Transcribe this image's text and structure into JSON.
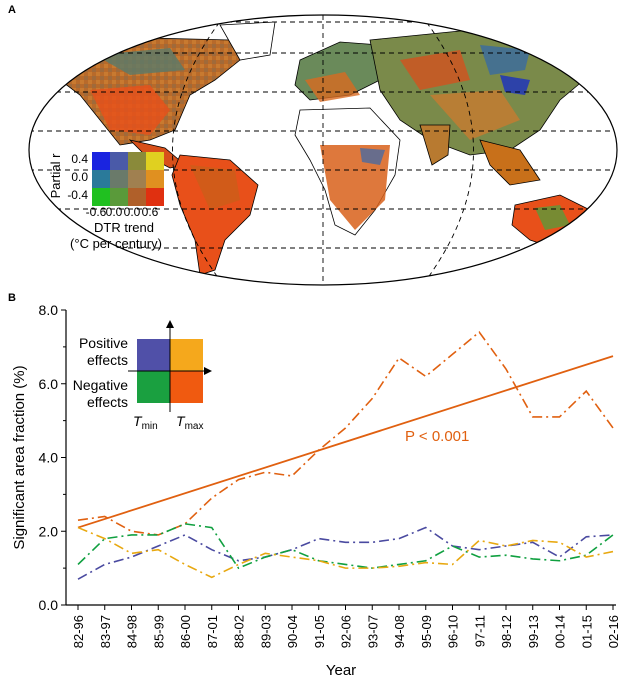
{
  "panel_a": {
    "label": "A",
    "legend": {
      "y_title": "Partial r",
      "y_ticks": [
        "0.4",
        "0.0",
        "-0.4"
      ],
      "x_ticks": [
        "-0.6",
        "0.0",
        "0.0",
        "0.6"
      ],
      "x_title_line1": "DTR trend",
      "x_title_line2": "(°C per century)",
      "colors": [
        [
          "#1a24e0",
          "#4a5aa8",
          "#8a8a3a",
          "#e0d020"
        ],
        [
          "#2a7a9a",
          "#6a7a6a",
          "#a08050",
          "#e09020"
        ],
        [
          "#20c020",
          "#5a9a3a",
          "#b0602a",
          "#e03010"
        ]
      ]
    }
  },
  "panel_b": {
    "label": "B",
    "quadrant_legend": {
      "positive": "Positive effects",
      "negative": "Negative effects",
      "tmin": "T",
      "tmin_sub": "min",
      "tmax": "T",
      "tmax_sub": "max",
      "colors": {
        "pos_tmin": "#5050a8",
        "pos_tmax": "#f5a81c",
        "neg_tmin": "#1aa040",
        "neg_tmax": "#f05a10"
      }
    },
    "annotation": "P < 0.001"
  },
  "chart_data": {
    "type": "line",
    "xlabel": "Year",
    "ylabel": "Significant area fraction (%)",
    "ylim": [
      0,
      8
    ],
    "yticks": [
      "0.0",
      "2.0",
      "4.0",
      "6.0",
      "8.0"
    ],
    "categories": [
      "82-96",
      "83-97",
      "84-98",
      "85-99",
      "86-00",
      "87-01",
      "88-02",
      "89-03",
      "90-04",
      "91-05",
      "92-06",
      "93-07",
      "94-08",
      "95-09",
      "96-10",
      "97-11",
      "98-12",
      "99-13",
      "00-14",
      "01-15",
      "02-16"
    ],
    "series": [
      {
        "color": "#e06010",
        "style": "dashdot",
        "values": [
          2.3,
          2.4,
          2.0,
          1.9,
          2.2,
          2.9,
          3.4,
          3.6,
          3.5,
          4.2,
          4.8,
          5.6,
          6.7,
          6.2,
          6.8,
          7.4,
          6.4,
          5.1,
          5.1,
          5.8,
          4.8
        ]
      },
      {
        "color": "#e06010",
        "style": "trend",
        "values": [
          2.1,
          2.33,
          2.56,
          2.79,
          3.02,
          3.25,
          3.48,
          3.71,
          3.94,
          4.17,
          4.4,
          4.63,
          4.86,
          5.09,
          5.32,
          5.55,
          5.78,
          6.01,
          6.24,
          6.47,
          6.75
        ]
      },
      {
        "color": "#4a4aa0",
        "style": "dashdot",
        "values": [
          0.7,
          1.1,
          1.3,
          1.6,
          1.9,
          1.5,
          1.2,
          1.3,
          1.5,
          1.8,
          1.7,
          1.7,
          1.8,
          2.1,
          1.6,
          1.5,
          1.6,
          1.7,
          1.3,
          1.85,
          1.9
        ]
      },
      {
        "color": "#10a040",
        "style": "dashdot",
        "values": [
          1.1,
          1.8,
          1.9,
          1.9,
          2.2,
          2.1,
          1.0,
          1.3,
          1.5,
          1.2,
          1.1,
          1.0,
          1.1,
          1.2,
          1.6,
          1.3,
          1.35,
          1.25,
          1.2,
          1.35,
          1.9
        ]
      },
      {
        "color": "#e8a810",
        "style": "dashdot",
        "values": [
          2.1,
          1.8,
          1.4,
          1.5,
          1.1,
          0.75,
          1.1,
          1.4,
          1.3,
          1.2,
          1.0,
          1.0,
          1.05,
          1.15,
          1.1,
          1.75,
          1.6,
          1.75,
          1.7,
          1.3,
          1.45
        ]
      }
    ]
  }
}
